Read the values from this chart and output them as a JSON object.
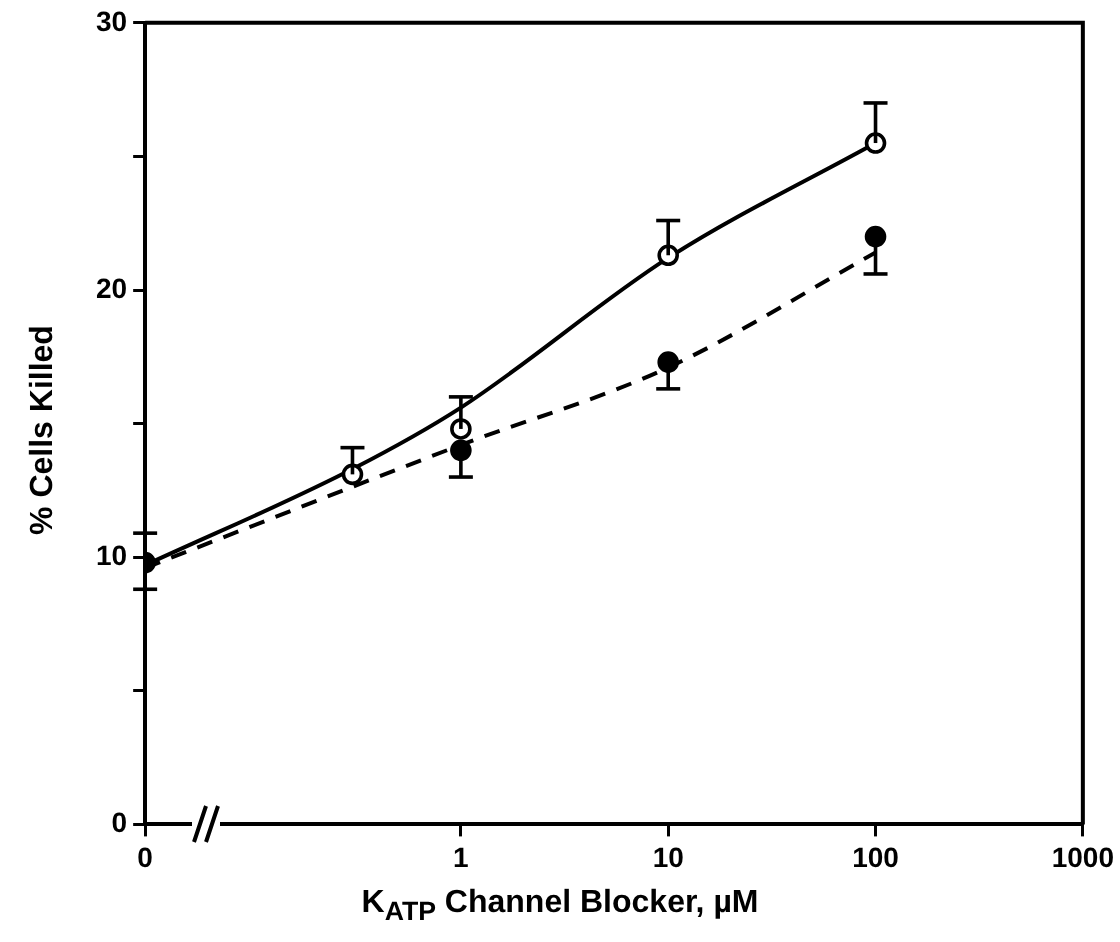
{
  "chart_data": {
    "type": "scatter",
    "xlabel": "K$_{ATP}$ Channel Blocker, µM",
    "ylabel": "% Cells Killed",
    "log": "x",
    "xlim": [
      0.03,
      1000
    ],
    "xticks": [
      {
        "value": 0.03,
        "label": "0"
      },
      1,
      10,
      100,
      1000
    ],
    "ylim": [
      0,
      30
    ],
    "yticks": [
      0,
      {
        "value": 5,
        "label": null
      },
      10,
      {
        "value": 15,
        "label": null
      },
      20,
      {
        "value": 25,
        "label": null
      },
      30
    ],
    "grid": false,
    "legend": false,
    "marker": "circle",
    "series": [
      {
        "type": "line",
        "marker": "none",
        "color": "#000000",
        "line_style": "solid",
        "x": [
          0.03,
          0.3,
          1,
          10,
          100
        ],
        "values": [
          9.7,
          13.3,
          15.6,
          21.2,
          25.5
        ]
      },
      {
        "type": "line",
        "marker": "none",
        "color": "#000000",
        "line_style": "dashed",
        "x": [
          0.03,
          1,
          10,
          100
        ],
        "values": [
          9.6,
          14.2,
          17.1,
          21.4
        ]
      },
      {
        "color": "#000000",
        "x": [
          0.3,
          1,
          10,
          100
        ],
        "values": [
          13.1,
          14.8,
          21.3,
          25.5
        ],
        "errors": [
          [
            13.1,
            14.1
          ],
          [
            14.8,
            16.0
          ],
          [
            21.3,
            22.6
          ],
          [
            25.5,
            27.0
          ]
        ]
      },
      {
        "color": "#000000",
        "x": [
          0.03,
          1,
          10,
          100
        ],
        "values": [
          9.8,
          14.0,
          17.3,
          22.0
        ],
        "errors": [
          [
            8.8,
            10.9
          ],
          [
            13.0,
            14.0
          ],
          [
            16.3,
            17.3
          ],
          [
            20.6,
            22.0
          ]
        ]
      }
    ]
  }
}
